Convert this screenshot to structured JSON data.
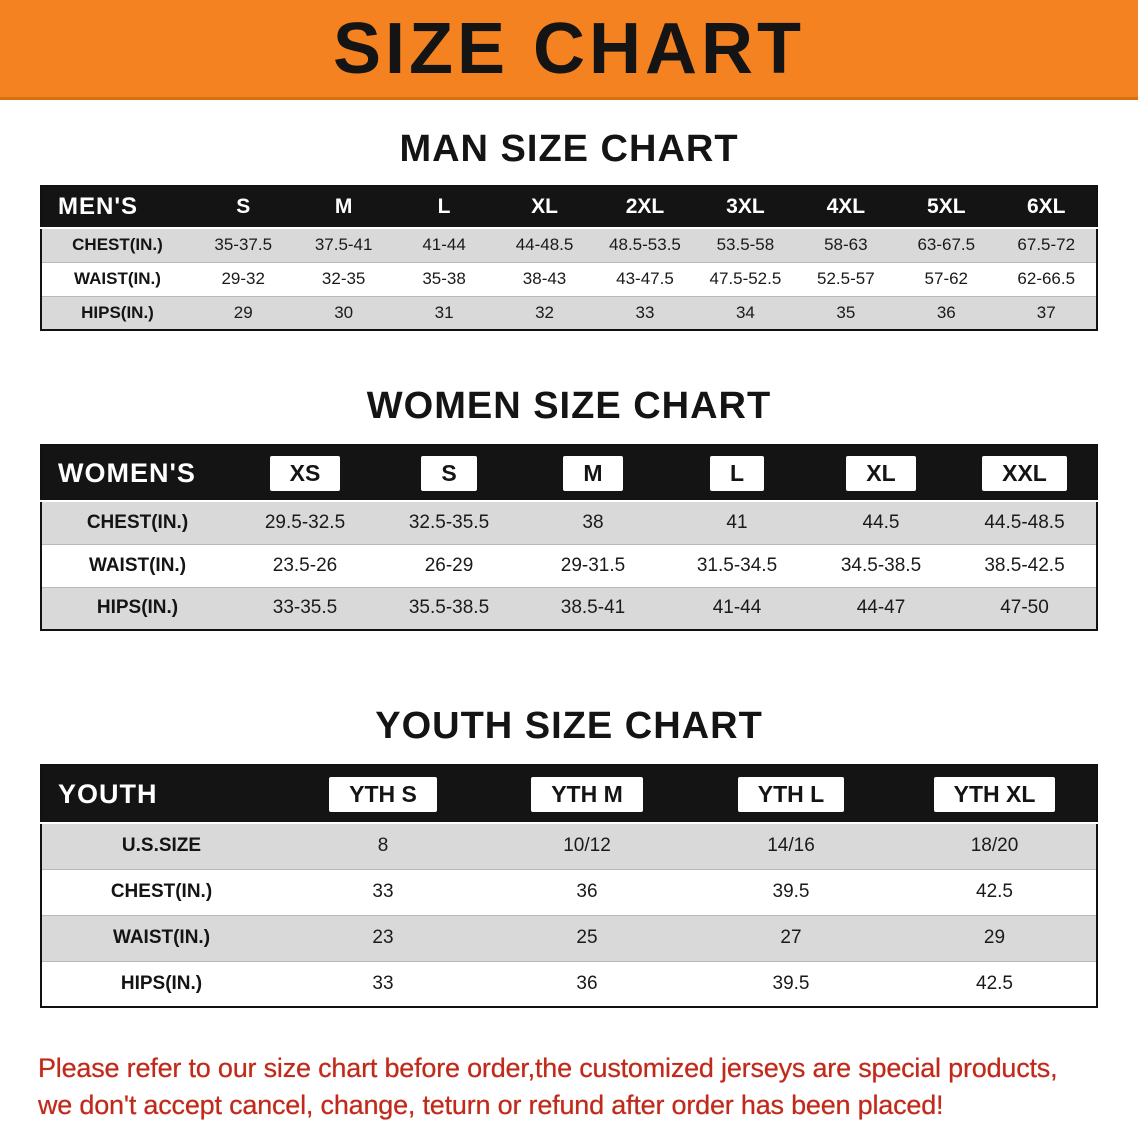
{
  "banner": {
    "title": "SIZE CHART",
    "bg_color": "#F58220"
  },
  "sections": {
    "men": {
      "heading": "MAN SIZE CHART",
      "table": {
        "header": [
          "MEN'S",
          "S",
          "M",
          "L",
          "XL",
          "2XL",
          "3XL",
          "4XL",
          "5XL",
          "6XL"
        ],
        "rows": [
          {
            "label": "CHEST(IN.)",
            "values": [
              "35-37.5",
              "37.5-41",
              "41-44",
              "44-48.5",
              "48.5-53.5",
              "53.5-58",
              "58-63",
              "63-67.5",
              "67.5-72"
            ]
          },
          {
            "label": "WAIST(IN.)",
            "values": [
              "29-32",
              "32-35",
              "35-38",
              "38-43",
              "43-47.5",
              "47.5-52.5",
              "52.5-57",
              "57-62",
              "62-66.5"
            ]
          },
          {
            "label": "HIPS(IN.)",
            "values": [
              "29",
              "30",
              "31",
              "32",
              "33",
              "34",
              "35",
              "36",
              "37"
            ]
          }
        ]
      }
    },
    "women": {
      "heading": "WOMEN SIZE CHART",
      "table": {
        "header": [
          "WOMEN'S",
          "XS",
          "S",
          "M",
          "L",
          "XL",
          "XXL"
        ],
        "rows": [
          {
            "label": "CHEST(IN.)",
            "values": [
              "29.5-32.5",
              "32.5-35.5",
              "38",
              "41",
              "44.5",
              "44.5-48.5"
            ]
          },
          {
            "label": "WAIST(IN.)",
            "values": [
              "23.5-26",
              "26-29",
              "29-31.5",
              "31.5-34.5",
              "34.5-38.5",
              "38.5-42.5"
            ]
          },
          {
            "label": "HIPS(IN.)",
            "values": [
              "33-35.5",
              "35.5-38.5",
              "38.5-41",
              "41-44",
              "44-47",
              "47-50"
            ]
          }
        ]
      }
    },
    "youth": {
      "heading": "YOUTH SIZE CHART",
      "table": {
        "header": [
          "YOUTH",
          "YTH S",
          "YTH M",
          "YTH L",
          "YTH XL"
        ],
        "rows": [
          {
            "label": "U.S.SIZE",
            "values": [
              "8",
              "10/12",
              "14/16",
              "18/20"
            ]
          },
          {
            "label": "CHEST(IN.)",
            "values": [
              "33",
              "36",
              "39.5",
              "42.5"
            ]
          },
          {
            "label": "WAIST(IN.)",
            "values": [
              "23",
              "25",
              "27",
              "29"
            ]
          },
          {
            "label": "HIPS(IN.)",
            "values": [
              "33",
              "36",
              "39.5",
              "42.5"
            ]
          }
        ]
      }
    }
  },
  "disclaimer": {
    "line1": "Please refer to our size chart before order,the customized jerseys are special products,",
    "line2": "we don't accept cancel, change, teturn or refund after order has been placed!",
    "color": "#C02A1A"
  }
}
